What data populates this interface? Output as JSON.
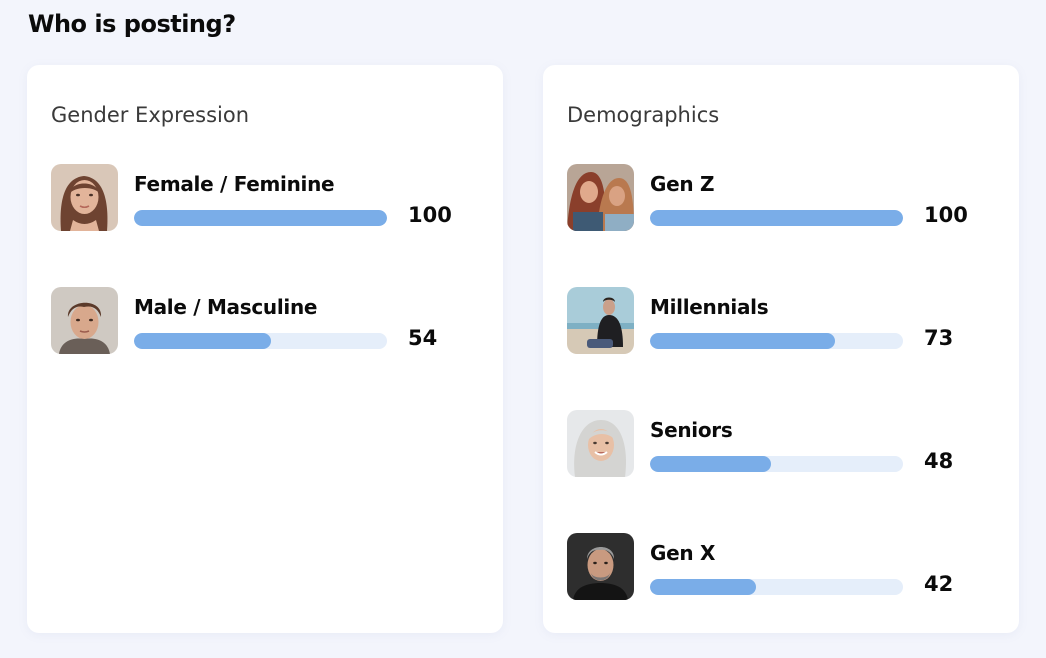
{
  "page": {
    "title": "Who is posting?"
  },
  "colors": {
    "bar_fill": "#7aade8",
    "bar_track": "#e5eefa"
  },
  "gender": {
    "title": "Gender Expression",
    "items": [
      {
        "label": "Female / Feminine",
        "value": "100",
        "fraction": 1.0,
        "avatar": "woman-portrait-icon"
      },
      {
        "label": "Male / Masculine",
        "value": "54",
        "fraction": 0.54,
        "avatar": "man-portrait-icon"
      }
    ]
  },
  "demographics": {
    "title": "Demographics",
    "items": [
      {
        "label": "Gen Z",
        "value": "100",
        "fraction": 1.0,
        "avatar": "gen-z-photo-icon"
      },
      {
        "label": "Millennials",
        "value": "73",
        "fraction": 0.73,
        "avatar": "millennial-photo-icon"
      },
      {
        "label": "Seniors",
        "value": "48",
        "fraction": 0.48,
        "avatar": "senior-photo-icon"
      },
      {
        "label": "Gen X",
        "value": "42",
        "fraction": 0.42,
        "avatar": "gen-x-photo-icon"
      }
    ]
  }
}
